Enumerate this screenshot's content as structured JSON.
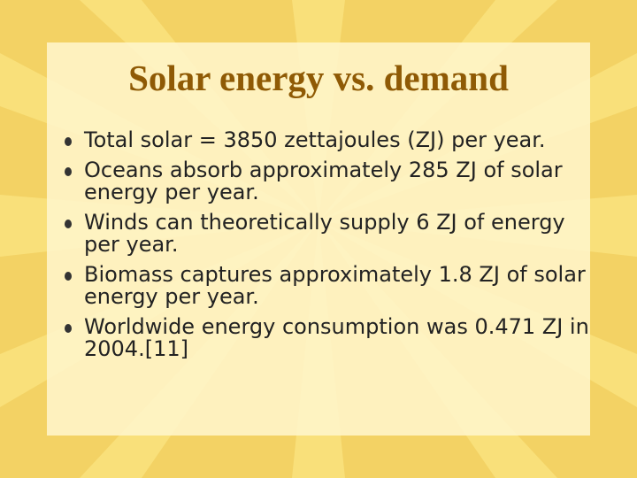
{
  "title": "Solar energy vs. demand",
  "bullets": [
    "Total solar = 3850 zettajoules (ZJ) per year.",
    "Oceans absorb approximately 285 ZJ of solar energy per year.",
    "Winds can theoretically supply 6 ZJ of energy per year.",
    "Biomass captures approximately 1.8 ZJ of solar energy per year.",
    "Worldwide energy consumption was 0.471 ZJ in 2004.[11]"
  ]
}
